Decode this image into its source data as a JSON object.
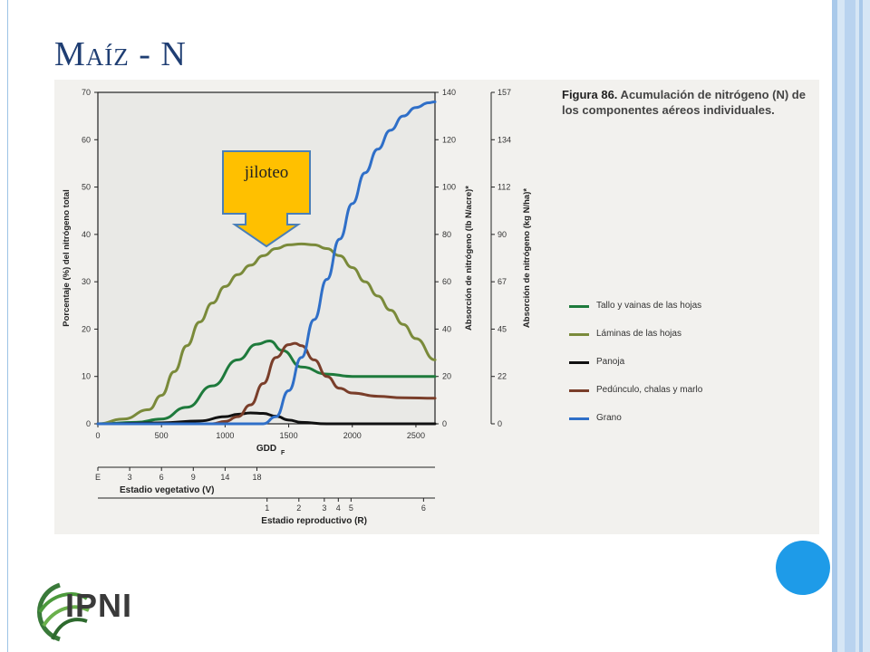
{
  "slide": {
    "title": "Maíz - N",
    "caption_bold": "Figura 86.",
    "caption_rest": " Acumulación de nitrógeno (N) de los componentes aéreos individuales.",
    "callout": "jiloteo",
    "logo": "IPNI"
  },
  "colors": {
    "title": "#1f3e73",
    "accent_dot": "#1e9be8",
    "callout_fill": "#ffc000",
    "callout_border": "#4a7fb8"
  },
  "chart_data": {
    "type": "line",
    "xlabel": "GDD",
    "xlabel_sub": "F",
    "ylabel": "Porcentaje (%) del nitrógeno total",
    "ylabel_right1": "Absorción de nitrógeno (lb N/acre)*",
    "ylabel_right2": "Absorción de nitrógeno (kg N/ha)*",
    "xlim": [
      0,
      2650
    ],
    "ylim": [
      0,
      70
    ],
    "x_ticks": [
      0,
      500,
      1000,
      1500,
      2000,
      2500
    ],
    "y_ticks": [
      0,
      10,
      20,
      30,
      40,
      50,
      60,
      70
    ],
    "y_right1_ticks": [
      0,
      20,
      40,
      60,
      80,
      100,
      120,
      140
    ],
    "y_right2_ticks": [
      "0",
      "22",
      "45",
      "67",
      "90",
      "112",
      "134",
      "157"
    ],
    "grid": false,
    "legend_position": "right",
    "series": [
      {
        "name": "Tallo y vainas de las hojas",
        "color": "#1e7a3c",
        "x": [
          0,
          300,
          500,
          700,
          900,
          1100,
          1250,
          1350,
          1450,
          1600,
          1800,
          2000,
          2200,
          2400,
          2650
        ],
        "y": [
          0,
          0.3,
          1,
          3.5,
          8,
          13.5,
          16.8,
          17.5,
          15.5,
          12,
          10.5,
          10,
          10,
          10,
          10
        ]
      },
      {
        "name": "Láminas de las hojas",
        "color": "#7a8a3a",
        "x": [
          0,
          200,
          400,
          500,
          600,
          700,
          800,
          900,
          1000,
          1100,
          1200,
          1300,
          1400,
          1500,
          1600,
          1700,
          1800,
          1900,
          2000,
          2100,
          2200,
          2300,
          2400,
          2500,
          2650
        ],
        "y": [
          0,
          1,
          3,
          6,
          11,
          16.5,
          21.5,
          25.5,
          29,
          31.5,
          33.5,
          35.5,
          37,
          37.8,
          38,
          37.8,
          37,
          35.5,
          33,
          30,
          27,
          24,
          21,
          18,
          13.5
        ]
      },
      {
        "name": "Panoja",
        "color": "#111111",
        "x": [
          0,
          500,
          800,
          1000,
          1100,
          1200,
          1300,
          1400,
          1500,
          1600,
          1800,
          2650
        ],
        "y": [
          0,
          0.2,
          0.6,
          1.5,
          2,
          2.3,
          2.2,
          1.6,
          0.8,
          0.3,
          0,
          0
        ]
      },
      {
        "name": "Pedúnculo, chalas y marlo",
        "color": "#7a3e2a",
        "x": [
          0,
          900,
          1000,
          1100,
          1200,
          1300,
          1400,
          1500,
          1550,
          1600,
          1700,
          1800,
          1900,
          2000,
          2200,
          2400,
          2650
        ],
        "y": [
          0,
          0,
          0.5,
          1.5,
          4,
          8.5,
          14,
          16.7,
          17,
          16.5,
          13.5,
          10,
          7.5,
          6.5,
          5.8,
          5.5,
          5.4
        ]
      },
      {
        "name": "Grano",
        "color": "#2f6fc8",
        "x": [
          0,
          1300,
          1400,
          1500,
          1600,
          1700,
          1800,
          1900,
          2000,
          2100,
          2200,
          2300,
          2400,
          2500,
          2600,
          2650
        ],
        "y": [
          0,
          0,
          1.5,
          7,
          14,
          22,
          30.5,
          39,
          46.5,
          53,
          58,
          62,
          65,
          66.8,
          67.8,
          68
        ]
      }
    ],
    "stages": {
      "vegetative_label": "Estadio vegetativo (V)",
      "vegetative_ticks": [
        {
          "label": "E",
          "gdd": 0
        },
        {
          "label": "3",
          "gdd": 250
        },
        {
          "label": "6",
          "gdd": 500
        },
        {
          "label": "9",
          "gdd": 750
        },
        {
          "label": "14",
          "gdd": 1000
        },
        {
          "label": "18",
          "gdd": 1250
        }
      ],
      "reproductive_label": "Estadio reproductivo (R)",
      "reproductive_ticks": [
        {
          "label": "1",
          "gdd": 1330
        },
        {
          "label": "2",
          "gdd": 1580
        },
        {
          "label": "3",
          "gdd": 1780
        },
        {
          "label": "4",
          "gdd": 1890
        },
        {
          "label": "5",
          "gdd": 1990
        },
        {
          "label": "6",
          "gdd": 2560
        }
      ]
    }
  }
}
